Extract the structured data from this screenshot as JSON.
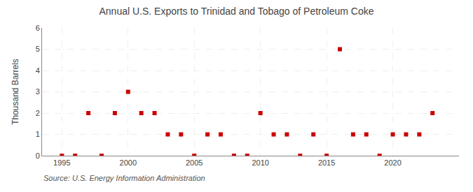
{
  "chart_data": {
    "type": "scatter",
    "title": "Annual U.S. Exports to Trinidad and Tobago of Petroleum Coke",
    "ylabel": "Thousand Barrels",
    "annotations": [
      "Source: U.S. Energy Information Administration"
    ],
    "x": [
      1995,
      1996,
      1997,
      1998,
      1999,
      2000,
      2001,
      2002,
      2003,
      2004,
      2005,
      2006,
      2007,
      2008,
      2009,
      2010,
      2011,
      2012,
      2013,
      2014,
      2015,
      2016,
      2017,
      2018,
      2019,
      2020,
      2021,
      2022,
      2023
    ],
    "values": [
      0,
      0,
      2,
      0,
      2,
      3,
      2,
      2,
      1,
      1,
      0,
      1,
      1,
      0,
      0,
      2,
      1,
      1,
      0,
      1,
      0,
      5,
      1,
      1,
      0,
      1,
      1,
      1,
      2
    ],
    "xlim": [
      1993.5,
      2025
    ],
    "xticks": [
      1995,
      2000,
      2005,
      2010,
      2015,
      2020
    ],
    "ylim": [
      0,
      6
    ],
    "yticks": [
      0,
      1,
      2,
      3,
      4,
      5,
      6
    ],
    "color": "#cc0000",
    "marker": "square",
    "grid": true
  }
}
